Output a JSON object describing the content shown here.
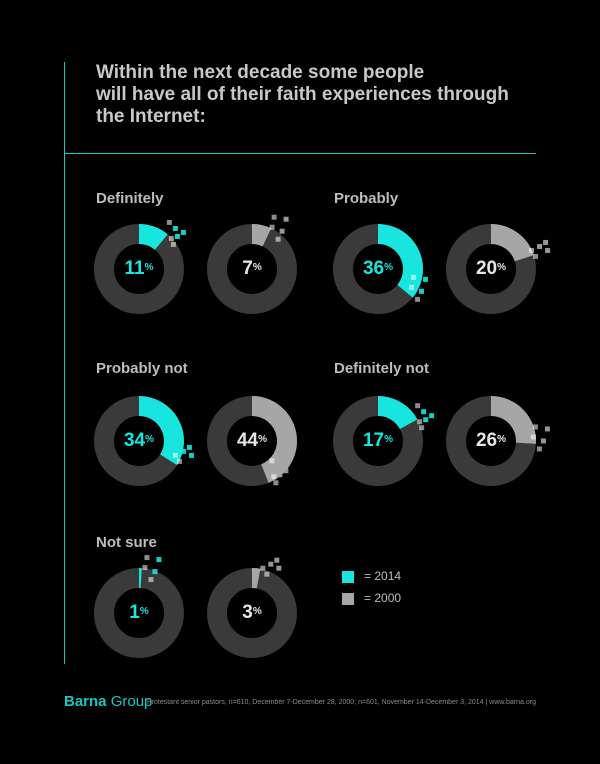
{
  "title_lines": [
    "Within the next decade some people",
    "will have all of their faith experiences through",
    "the Internet:"
  ],
  "colors": {
    "accent": "#18c7c0",
    "y2014": "#18e6de",
    "y2000": "#a6a6a6",
    "track": "#3a3a3a",
    "background": "#000000"
  },
  "chart_data": {
    "type": "pie",
    "variant": "donut",
    "series_names": [
      "2014",
      "2000"
    ],
    "groups": [
      {
        "label": "Definitely",
        "values": [
          11,
          7
        ]
      },
      {
        "label": "Probably",
        "values": [
          36,
          20
        ]
      },
      {
        "label": "Probably not",
        "values": [
          34,
          44
        ]
      },
      {
        "label": "Definitely not",
        "values": [
          17,
          26
        ]
      },
      {
        "label": "Not sure",
        "values": [
          1,
          3
        ]
      }
    ],
    "unit": "%",
    "legend": [
      {
        "text": "= 2014",
        "color": "#18e6de"
      },
      {
        "text": "= 2000",
        "color": "#a6a6a6"
      }
    ],
    "legend_position": "bottom-right"
  },
  "footer": {
    "brand_bold": "Barna",
    "brand_rest": " Group",
    "note": "Protestant senior pastors, n=610, December 7-December 28, 2000; n=601, November 14-December 3, 2014 | www.barna.org"
  }
}
